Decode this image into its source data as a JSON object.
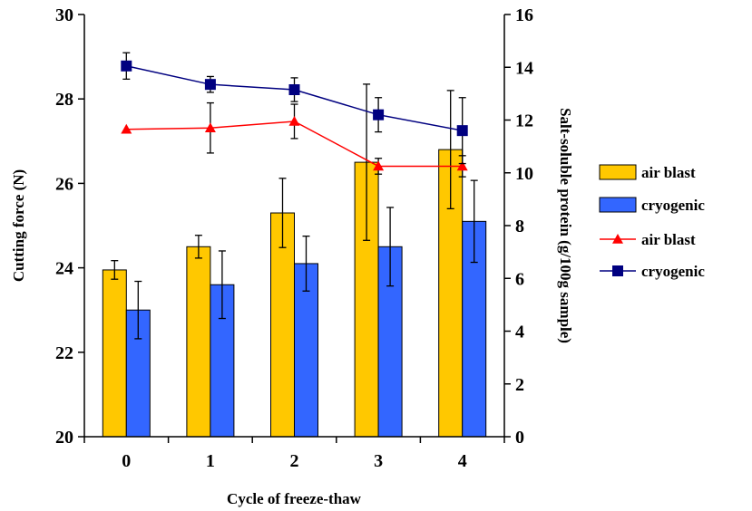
{
  "chart_data": {
    "type": "bar",
    "categories": [
      "0",
      "1",
      "2",
      "3",
      "4"
    ],
    "xlabel": "Cycle of freeze-thaw",
    "ylabel_left": "Cutting force (N)",
    "ylabel_right": "Salt-soluble protein (g/100g sample)",
    "ylim_left": [
      20,
      30
    ],
    "yticks_left": [
      20,
      22,
      24,
      26,
      28,
      30
    ],
    "ylim_right": [
      0,
      16
    ],
    "yticks_right": [
      0,
      2,
      4,
      6,
      8,
      10,
      12,
      14,
      16
    ],
    "grid": false,
    "legend_position": "right",
    "bar_series": [
      {
        "name": "air blast",
        "axis": "left",
        "color": "#FFC800",
        "values": [
          23.95,
          24.5,
          25.3,
          26.5,
          26.8
        ],
        "error": [
          0.22,
          0.27,
          0.82,
          1.85,
          1.4
        ]
      },
      {
        "name": "cryogenic",
        "axis": "left",
        "color": "#3366FF",
        "values": [
          23.0,
          23.6,
          24.1,
          24.5,
          25.1
        ],
        "error": [
          0.68,
          0.8,
          0.65,
          0.93,
          0.97
        ]
      }
    ],
    "line_series": [
      {
        "name": "air blast",
        "axis": "right",
        "color": "#FF0000",
        "marker": "triangle",
        "values": [
          11.65,
          11.7,
          11.95,
          10.25,
          10.25
        ],
        "error": [
          0,
          0.95,
          0.65,
          0.3,
          0.4
        ]
      },
      {
        "name": "cryogenic",
        "axis": "right",
        "color": "#000080",
        "marker": "square",
        "values": [
          14.05,
          13.35,
          13.15,
          12.2,
          11.6
        ],
        "error": [
          0.5,
          0.3,
          0.45,
          0.65,
          1.25
        ]
      }
    ]
  }
}
